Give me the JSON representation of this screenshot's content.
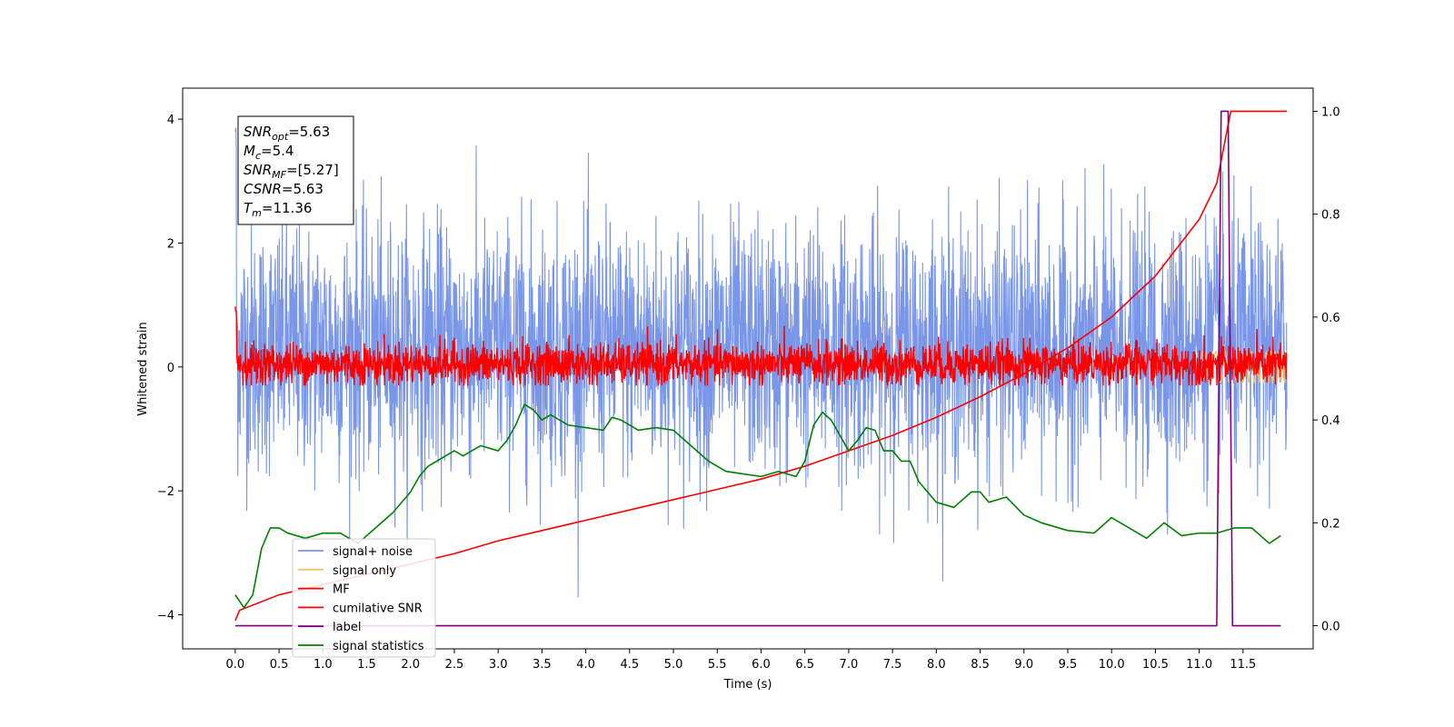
{
  "chart_data": {
    "type": "line",
    "xlabel": "Time (s)",
    "ylabel": "Whitened strain",
    "xlim": [
      -0.6,
      12.3
    ],
    "ylim": [
      -4.55,
      4.5
    ],
    "y2lim": [
      -0.045,
      1.045
    ],
    "x_ticks": [
      "0.0",
      "0.5",
      "1.0",
      "1.5",
      "2.0",
      "2.5",
      "3.0",
      "3.5",
      "4.0",
      "4.5",
      "5.0",
      "5.5",
      "6.0",
      "6.5",
      "7.0",
      "7.5",
      "8.0",
      "8.5",
      "9.0",
      "9.5",
      "10.0",
      "10.5",
      "11.0",
      "11.5"
    ],
    "y_ticks": [
      "4",
      "2",
      "0",
      "−2",
      "−4"
    ],
    "y2_ticks": [
      "1.0",
      "0.8",
      "0.6",
      "0.4",
      "0.2",
      "0.0"
    ],
    "annotation": {
      "lines": [
        {
          "label": "SNR",
          "sub": "opt",
          "value": "=5.63"
        },
        {
          "label": "M",
          "sub": "c",
          "value": "=5.4"
        },
        {
          "label": "SNR",
          "sub": "MF",
          "value": "=[5.27]"
        },
        {
          "label": "CSNR",
          "sub": "",
          "value": "=5.63"
        },
        {
          "label": "T",
          "sub": "m",
          "value": "=11.36"
        }
      ]
    },
    "legend": {
      "position": "lower-left",
      "entries": [
        {
          "name": "signal+ noise",
          "color": "#7a96e8"
        },
        {
          "name": "signal only",
          "color": "#f5c26b"
        },
        {
          "name": "MF",
          "color": "#ff0000"
        },
        {
          "name": "cumilative SNR",
          "color": "#ff0000"
        },
        {
          "name": "label",
          "color": "#800080"
        },
        {
          "name": "signal statistics",
          "color": "#008000"
        }
      ]
    },
    "series": [
      {
        "key": "signal_noise",
        "axis": "left",
        "color": "#7a96e8",
        "style": "noise",
        "x_range": [
          0,
          12
        ],
        "center": 0.3,
        "std": 1.0,
        "min": -4.1,
        "max": 4.1
      },
      {
        "key": "signal_only",
        "axis": "left",
        "color": "#f5c26b",
        "style": "chirp",
        "x_range": [
          11.0,
          12
        ],
        "amplitude": 0.25
      },
      {
        "key": "mf",
        "axis": "left",
        "color": "#ff0000",
        "style": "noise",
        "x_range": [
          0,
          12
        ],
        "center": 0.05,
        "std": 0.17,
        "min": -0.3,
        "max": 1.0
      },
      {
        "key": "cumulative_snr",
        "axis": "right",
        "color": "#ff0000",
        "x": [
          0.0,
          0.05,
          0.5,
          1.0,
          1.5,
          2.0,
          2.5,
          3.0,
          3.5,
          4.0,
          4.5,
          5.0,
          5.5,
          6.0,
          6.5,
          7.0,
          7.5,
          8.0,
          8.5,
          9.0,
          9.5,
          10.0,
          10.5,
          11.0,
          11.2,
          11.36,
          12.0
        ],
        "y": [
          0.01,
          0.03,
          0.06,
          0.08,
          0.1,
          0.12,
          0.14,
          0.165,
          0.185,
          0.205,
          0.225,
          0.245,
          0.265,
          0.285,
          0.31,
          0.34,
          0.37,
          0.405,
          0.445,
          0.49,
          0.54,
          0.6,
          0.68,
          0.79,
          0.86,
          1.0,
          1.0
        ]
      },
      {
        "key": "label",
        "axis": "right",
        "color": "#800080",
        "x": [
          0.0,
          11.2,
          11.25,
          11.33,
          11.38,
          11.93
        ],
        "y": [
          0.0,
          0.0,
          1.0,
          1.0,
          0.0,
          0.0
        ]
      },
      {
        "key": "signal_statistics",
        "axis": "right",
        "color": "#008000",
        "x": [
          0.0,
          0.1,
          0.2,
          0.3,
          0.4,
          0.5,
          0.6,
          0.8,
          1.0,
          1.2,
          1.4,
          1.6,
          1.8,
          2.0,
          2.1,
          2.2,
          2.3,
          2.4,
          2.5,
          2.6,
          2.8,
          3.0,
          3.1,
          3.2,
          3.3,
          3.4,
          3.5,
          3.6,
          3.8,
          4.0,
          4.2,
          4.3,
          4.4,
          4.6,
          4.8,
          5.0,
          5.2,
          5.4,
          5.6,
          5.8,
          6.0,
          6.2,
          6.4,
          6.5,
          6.6,
          6.7,
          6.8,
          6.9,
          7.0,
          7.1,
          7.2,
          7.3,
          7.4,
          7.5,
          7.6,
          7.7,
          7.8,
          8.0,
          8.2,
          8.4,
          8.5,
          8.6,
          8.8,
          9.0,
          9.2,
          9.5,
          9.8,
          10.0,
          10.2,
          10.4,
          10.6,
          10.8,
          11.0,
          11.2,
          11.4,
          11.6,
          11.8,
          11.93
        ],
        "y": [
          0.06,
          0.035,
          0.06,
          0.15,
          0.19,
          0.19,
          0.18,
          0.17,
          0.18,
          0.18,
          0.16,
          0.19,
          0.22,
          0.26,
          0.29,
          0.31,
          0.32,
          0.33,
          0.34,
          0.33,
          0.35,
          0.34,
          0.36,
          0.39,
          0.43,
          0.42,
          0.4,
          0.41,
          0.39,
          0.385,
          0.38,
          0.405,
          0.4,
          0.38,
          0.385,
          0.38,
          0.35,
          0.32,
          0.3,
          0.295,
          0.29,
          0.3,
          0.29,
          0.32,
          0.39,
          0.415,
          0.4,
          0.37,
          0.34,
          0.36,
          0.385,
          0.38,
          0.34,
          0.34,
          0.32,
          0.32,
          0.28,
          0.24,
          0.23,
          0.26,
          0.26,
          0.24,
          0.25,
          0.215,
          0.2,
          0.185,
          0.18,
          0.21,
          0.19,
          0.17,
          0.2,
          0.175,
          0.18,
          0.18,
          0.19,
          0.19,
          0.16,
          0.175
        ]
      }
    ]
  }
}
